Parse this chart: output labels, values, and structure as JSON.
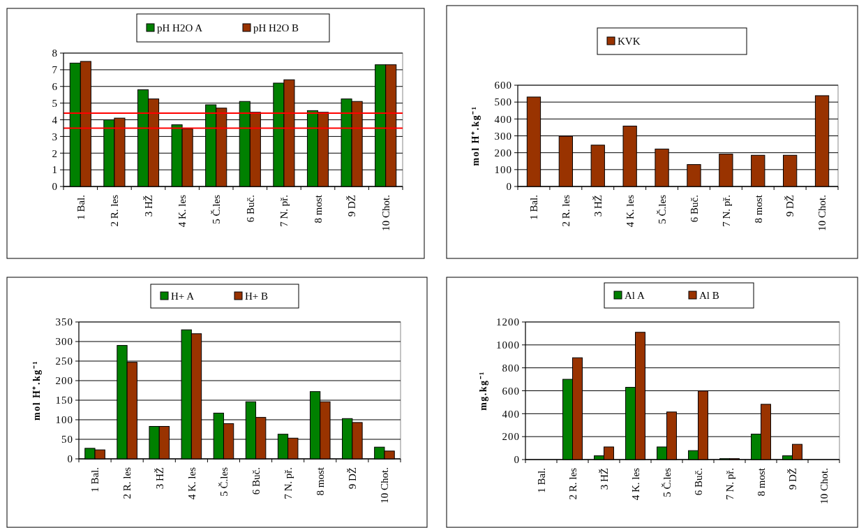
{
  "chart_data": [
    {
      "type": "bar",
      "categories": [
        "1 Bal.",
        "2 R. les",
        "3 HŽ",
        "4 K. les",
        "5 Č.les",
        "6 Buč.",
        "7 N. př.",
        "8 most",
        "9 DŽ",
        "10 Chot."
      ],
      "series": [
        {
          "name": "pH H2O A",
          "color": "#008000",
          "values": [
            7.4,
            4.0,
            5.8,
            3.7,
            4.9,
            5.1,
            6.2,
            4.55,
            5.25,
            7.3
          ]
        },
        {
          "name": "pH H2O B",
          "color": "#993300",
          "values": [
            7.5,
            4.1,
            5.25,
            3.45,
            4.7,
            4.45,
            6.4,
            4.45,
            5.1,
            7.3
          ]
        }
      ],
      "ylim": [
        0,
        8
      ],
      "yticks": [
        0,
        1,
        2,
        3,
        4,
        5,
        6,
        7,
        8
      ],
      "grid": "y",
      "legend": "top",
      "ref_lines": [
        {
          "axis": "y",
          "value": 4.4,
          "color": "#ff0000"
        },
        {
          "axis": "y",
          "value": 3.5,
          "color": "#ff0000"
        }
      ]
    },
    {
      "type": "bar",
      "categories": [
        "1 Bal.",
        "2 R. les",
        "3 HŽ",
        "4 K. les",
        "5 Č.les",
        "6 Buč.",
        "7 N. př.",
        "8 most",
        "9 DŽ",
        "10 Chot."
      ],
      "series": [
        {
          "name": "KVK",
          "color": "#993300",
          "values": [
            530,
            298,
            245,
            358,
            222,
            130,
            192,
            185,
            185,
            538
          ]
        }
      ],
      "ylabel": "mol H⁺.kg⁻¹",
      "ylim": [
        0,
        600
      ],
      "yticks": [
        0,
        100,
        200,
        300,
        400,
        500,
        600
      ],
      "grid": "y",
      "legend": "top"
    },
    {
      "type": "bar",
      "categories": [
        "1 Bal.",
        "2 R. les",
        "3 HŽ",
        "4 K. les",
        "5 Č.les",
        "6 Buč.",
        "7 N. př.",
        "8 most",
        "9 DŽ",
        "10 Chot."
      ],
      "series": [
        {
          "name": "H+ A",
          "color": "#008000",
          "values": [
            27,
            290,
            83,
            330,
            117,
            146,
            63,
            172,
            103,
            30
          ]
        },
        {
          "name": "H+ B",
          "color": "#993300",
          "values": [
            23,
            247,
            83,
            320,
            90,
            106,
            53,
            146,
            93,
            20
          ]
        }
      ],
      "ylabel": "mol H⁺.kg⁻¹",
      "ylim": [
        0,
        350
      ],
      "yticks": [
        0,
        50,
        100,
        150,
        200,
        250,
        300,
        350
      ],
      "grid": "y",
      "legend": "top"
    },
    {
      "type": "bar",
      "categories": [
        "1 Bal.",
        "2 R. les",
        "3 HŽ",
        "4 K. les",
        "5 Č.les",
        "6 Buč.",
        "7 N. př.",
        "8 most",
        "9 DŽ",
        "10 Chot."
      ],
      "series": [
        {
          "name": "Al A",
          "color": "#008000",
          "values": [
            null,
            700,
            33,
            630,
            110,
            78,
            8,
            222,
            33,
            null
          ]
        },
        {
          "name": "Al B",
          "color": "#993300",
          "values": [
            null,
            888,
            110,
            1110,
            415,
            598,
            8,
            482,
            133,
            null
          ]
        }
      ],
      "ylabel": "mg.kg⁻¹",
      "ylim": [
        0,
        1200
      ],
      "yticks": [
        0,
        200,
        400,
        600,
        800,
        1000,
        1200
      ],
      "grid": "y",
      "legend": "top"
    }
  ]
}
